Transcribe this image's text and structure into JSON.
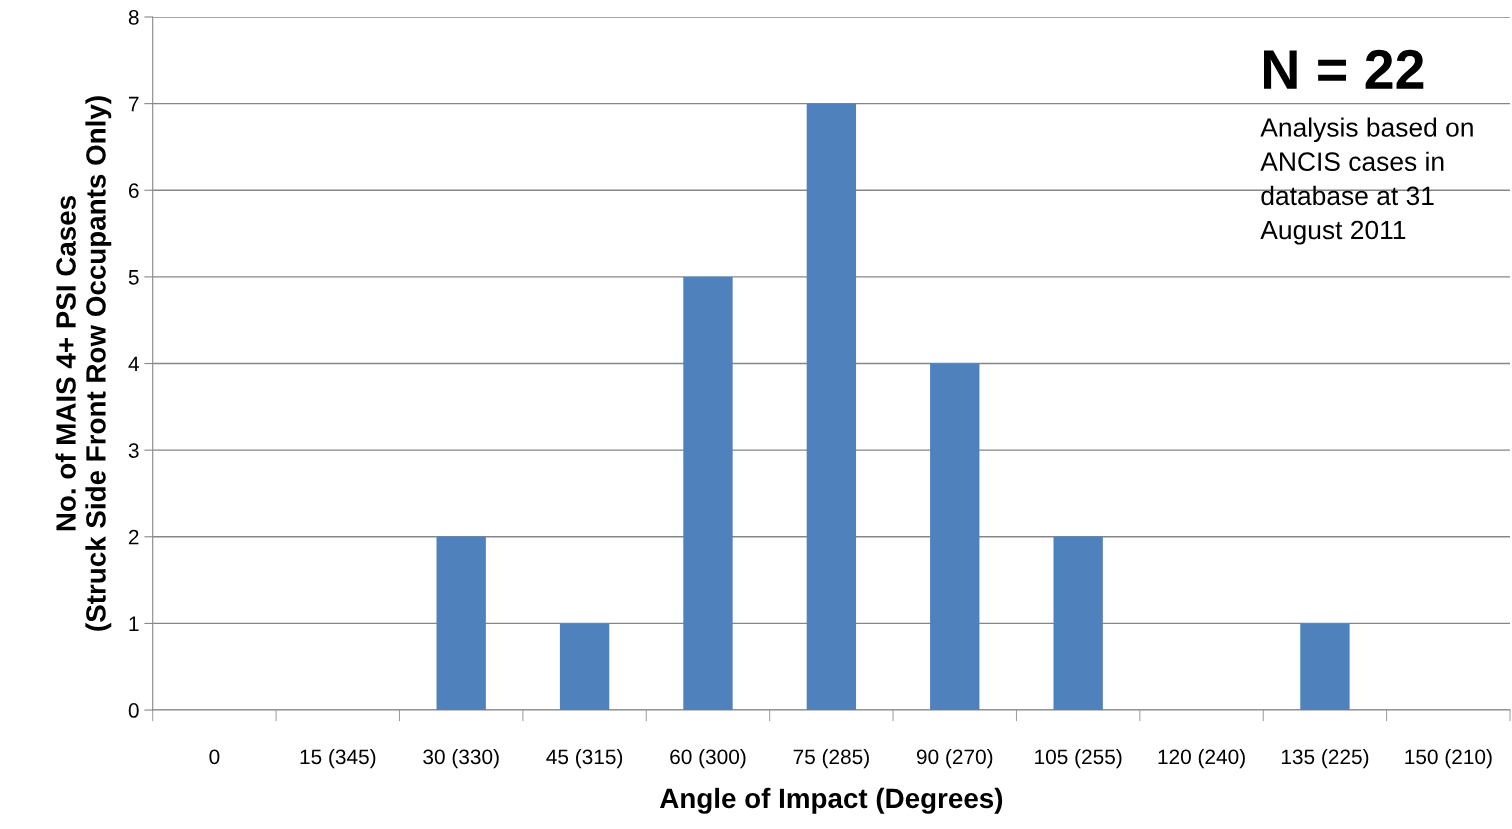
{
  "chart_data": {
    "type": "bar",
    "xlabel": "Angle of Impact (Degrees)",
    "ylabel": "No. of MAIS 4+ PSI Cases\n(Struck Side Front Row Occupants Only)",
    "categories": [
      "0",
      "15 (345)",
      "30 (330)",
      "45 (315)",
      "60 (300)",
      "75 (285)",
      "90 (270)",
      "105 (255)",
      "120 (240)",
      "135 (225)",
      "150 (210)"
    ],
    "values": [
      0,
      0,
      2,
      1,
      5,
      7,
      4,
      2,
      0,
      1,
      0
    ],
    "color": "#4f81bd",
    "ylim": [
      0,
      8
    ],
    "yticks": [
      0,
      1,
      2,
      3,
      4,
      5,
      6,
      7,
      8
    ],
    "grid": "y",
    "annotations": [
      "N = 22",
      "Analysis based on\nANCIS cases in\ndatabase at 31\nAugust 2011"
    ]
  }
}
